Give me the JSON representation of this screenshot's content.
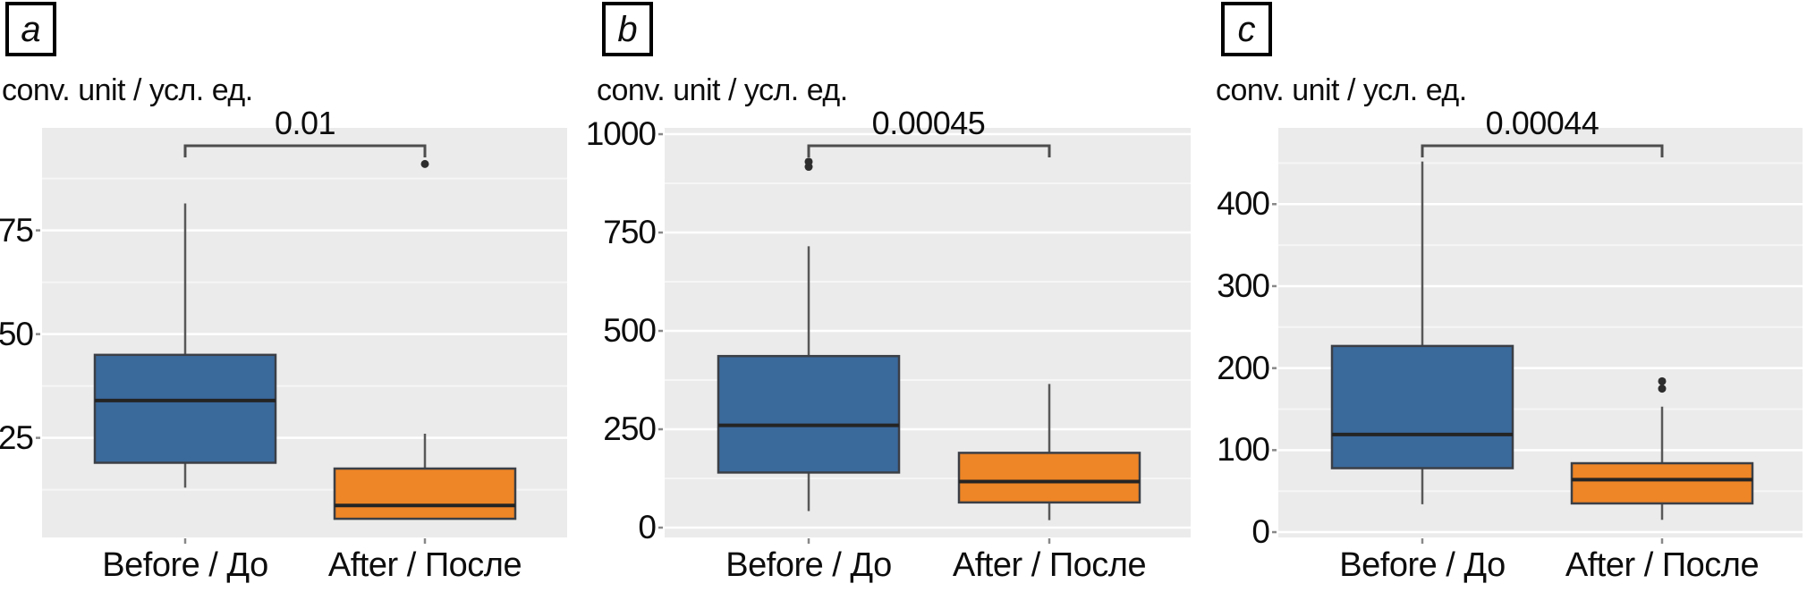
{
  "figure": {
    "background": "#ffffff",
    "panel_background": "#ebebeb",
    "grid_major_color": "#ffffff",
    "grid_minor_color": "#f6f6f6",
    "box_outline_color": "#3b3f46",
    "whisker_color": "#585858",
    "bracket_color": "#4d4d4d",
    "text_color": "#0d0d0d",
    "before_color": "#3a699c",
    "after_color": "#ee8526"
  },
  "chart_data": [
    {
      "type": "boxplot",
      "panel_letter": "a",
      "axis_title": "conv. unit / усл. ед.",
      "p_value": "0.01",
      "categories": [
        "Before / До",
        "After / После"
      ],
      "ylim": [
        1,
        99.7
      ],
      "yticks": [
        25,
        50,
        75
      ],
      "grid": true,
      "legend": "none",
      "series": [
        {
          "name": "Before / До",
          "color": "#3a699c",
          "whislo": 13,
          "q1": 19,
          "med": 34,
          "q3": 45,
          "whishi": 81.5,
          "outliers": []
        },
        {
          "name": "After / После",
          "color": "#ee8526",
          "whislo": 5.5,
          "q1": 5.5,
          "med": 8.7,
          "q3": 17.6,
          "whishi": 26,
          "outliers": [
            91
          ]
        }
      ]
    },
    {
      "type": "boxplot",
      "panel_letter": "b",
      "axis_title": "conv. unit / усл. ед.",
      "p_value": "0.00045",
      "categories": [
        "Before / До",
        "After / После"
      ],
      "ylim": [
        -25,
        1016
      ],
      "yticks": [
        0,
        250,
        500,
        750,
        1000
      ],
      "grid": true,
      "legend": "none",
      "series": [
        {
          "name": "Before / До",
          "color": "#3a699c",
          "whislo": 42,
          "q1": 140,
          "med": 260,
          "q3": 436,
          "whishi": 715,
          "outliers": [
            917,
            930
          ]
        },
        {
          "name": "After / После",
          "color": "#ee8526",
          "whislo": 19,
          "q1": 64,
          "med": 117,
          "q3": 190,
          "whishi": 365,
          "outliers": []
        }
      ]
    },
    {
      "type": "boxplot",
      "panel_letter": "c",
      "axis_title": "conv. unit / усл. ед.",
      "p_value": "0.00044",
      "categories": [
        "Before / До",
        "After / После"
      ],
      "ylim": [
        -6.5,
        493
      ],
      "yticks": [
        0,
        100,
        200,
        300,
        400
      ],
      "grid": true,
      "legend": "none",
      "series": [
        {
          "name": "Before / До",
          "color": "#3a699c",
          "whislo": 34,
          "q1": 78,
          "med": 119,
          "q3": 227,
          "whishi": 452,
          "outliers": []
        },
        {
          "name": "After / После",
          "color": "#ee8526",
          "whislo": 15,
          "q1": 35,
          "med": 64,
          "q3": 84,
          "whishi": 153,
          "outliers": [
            175,
            184
          ]
        }
      ]
    }
  ]
}
